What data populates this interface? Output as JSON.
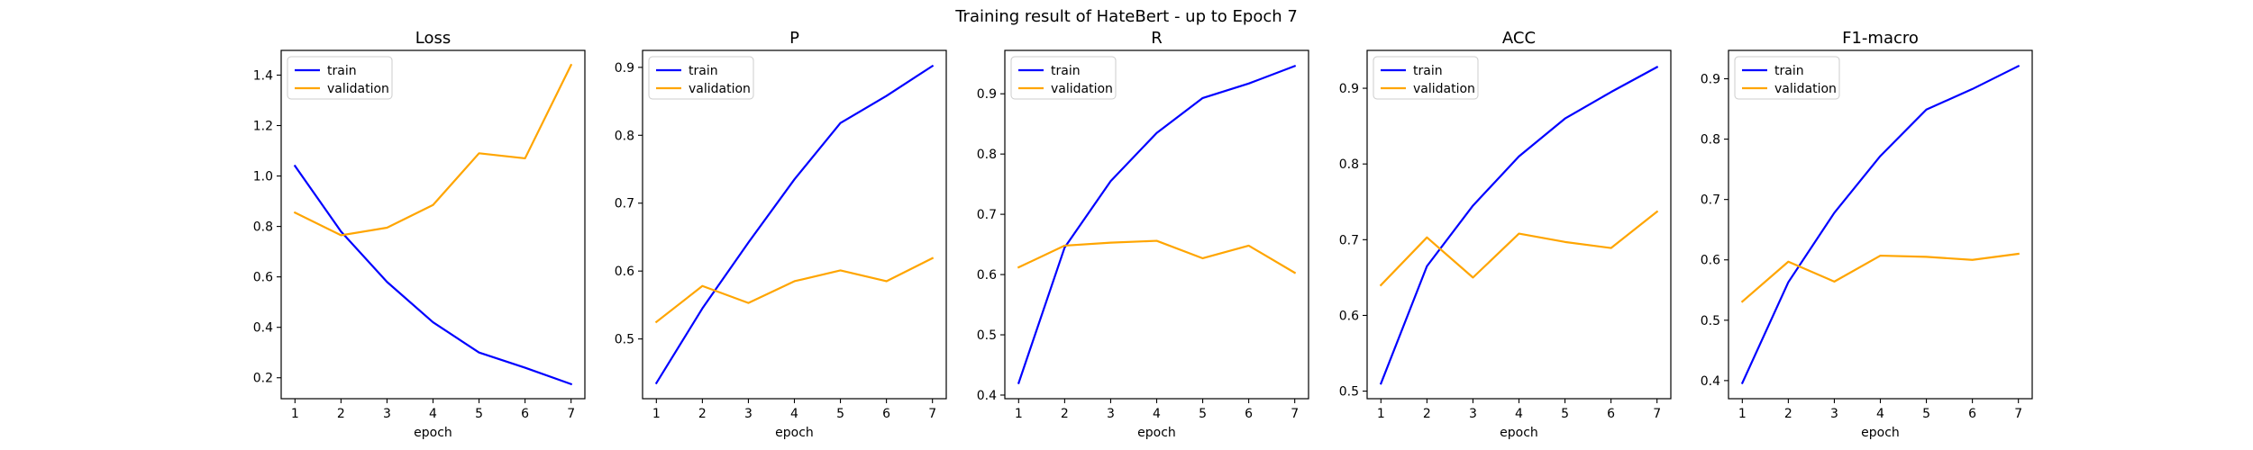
{
  "figure": {
    "title": "Training result of HateBert - up to Epoch 7"
  },
  "chart_data": [
    {
      "type": "line",
      "title": "Loss",
      "xlabel": "epoch",
      "ylabel": "",
      "x": [
        1,
        2,
        3,
        4,
        5,
        6,
        7
      ],
      "xlim": [
        0.7,
        7.3
      ],
      "ylim": [
        0.117,
        1.498
      ],
      "yticks": [
        0.2,
        0.4,
        0.6,
        0.8,
        1.0,
        1.2,
        1.4
      ],
      "ytick_labels": [
        "0.2",
        "0.4",
        "0.6",
        "0.8",
        "1.0",
        "1.2",
        "1.4"
      ],
      "grid": false,
      "legend": "top-left",
      "series": [
        {
          "name": "train",
          "color": "#0000ff",
          "values": [
            1.04,
            0.78,
            0.58,
            0.42,
            0.3,
            0.24,
            0.175
          ]
        },
        {
          "name": "validation",
          "color": "#ffa500",
          "values": [
            0.855,
            0.765,
            0.795,
            0.885,
            1.09,
            1.07,
            1.44
          ]
        }
      ]
    },
    {
      "type": "line",
      "title": "P",
      "xlabel": "epoch",
      "ylabel": "",
      "x": [
        1,
        2,
        3,
        4,
        5,
        6,
        7
      ],
      "xlim": [
        0.7,
        7.3
      ],
      "ylim": [
        0.412,
        0.925
      ],
      "yticks": [
        0.5,
        0.6,
        0.7,
        0.8,
        0.9
      ],
      "ytick_labels": [
        "0.5",
        "0.6",
        "0.7",
        "0.8",
        "0.9"
      ],
      "grid": false,
      "legend": "top-left",
      "series": [
        {
          "name": "train",
          "color": "#0000ff",
          "values": [
            0.435,
            0.545,
            0.642,
            0.735,
            0.818,
            0.858,
            0.902
          ]
        },
        {
          "name": "validation",
          "color": "#ffa500",
          "values": [
            0.525,
            0.578,
            0.553,
            0.585,
            0.601,
            0.585,
            0.619
          ]
        }
      ]
    },
    {
      "type": "line",
      "title": "R",
      "xlabel": "epoch",
      "ylabel": "",
      "x": [
        1,
        2,
        3,
        4,
        5,
        6,
        7
      ],
      "xlim": [
        0.7,
        7.3
      ],
      "ylim": [
        0.394,
        0.972
      ],
      "yticks": [
        0.4,
        0.5,
        0.6,
        0.7,
        0.8,
        0.9
      ],
      "ytick_labels": [
        "0.4",
        "0.5",
        "0.6",
        "0.7",
        "0.8",
        "0.9"
      ],
      "grid": false,
      "legend": "top-left",
      "series": [
        {
          "name": "train",
          "color": "#0000ff",
          "values": [
            0.42,
            0.645,
            0.755,
            0.835,
            0.893,
            0.917,
            0.946
          ]
        },
        {
          "name": "validation",
          "color": "#ffa500",
          "values": [
            0.612,
            0.648,
            0.653,
            0.656,
            0.627,
            0.648,
            0.603
          ]
        }
      ]
    },
    {
      "type": "line",
      "title": "ACC",
      "xlabel": "epoch",
      "ylabel": "",
      "x": [
        1,
        2,
        3,
        4,
        5,
        6,
        7
      ],
      "xlim": [
        0.7,
        7.3
      ],
      "ylim": [
        0.49,
        0.95
      ],
      "yticks": [
        0.5,
        0.6,
        0.7,
        0.8,
        0.9
      ],
      "ytick_labels": [
        "0.5",
        "0.6",
        "0.7",
        "0.8",
        "0.9"
      ],
      "grid": false,
      "legend": "top-left",
      "series": [
        {
          "name": "train",
          "color": "#0000ff",
          "values": [
            0.51,
            0.665,
            0.745,
            0.81,
            0.86,
            0.895,
            0.928
          ]
        },
        {
          "name": "validation",
          "color": "#ffa500",
          "values": [
            0.64,
            0.703,
            0.65,
            0.708,
            0.697,
            0.689,
            0.737
          ]
        }
      ]
    },
    {
      "type": "line",
      "title": "F1-macro",
      "xlabel": "epoch",
      "ylabel": "",
      "x": [
        1,
        2,
        3,
        4,
        5,
        6,
        7
      ],
      "xlim": [
        0.7,
        7.3
      ],
      "ylim": [
        0.37,
        0.947
      ],
      "yticks": [
        0.4,
        0.5,
        0.6,
        0.7,
        0.8,
        0.9
      ],
      "ytick_labels": [
        "0.4",
        "0.5",
        "0.6",
        "0.7",
        "0.8",
        "0.9"
      ],
      "grid": false,
      "legend": "top-left",
      "series": [
        {
          "name": "train",
          "color": "#0000ff",
          "values": [
            0.396,
            0.563,
            0.678,
            0.772,
            0.849,
            0.883,
            0.921
          ]
        },
        {
          "name": "validation",
          "color": "#ffa500",
          "values": [
            0.531,
            0.597,
            0.564,
            0.607,
            0.605,
            0.6,
            0.61
          ]
        }
      ]
    }
  ]
}
